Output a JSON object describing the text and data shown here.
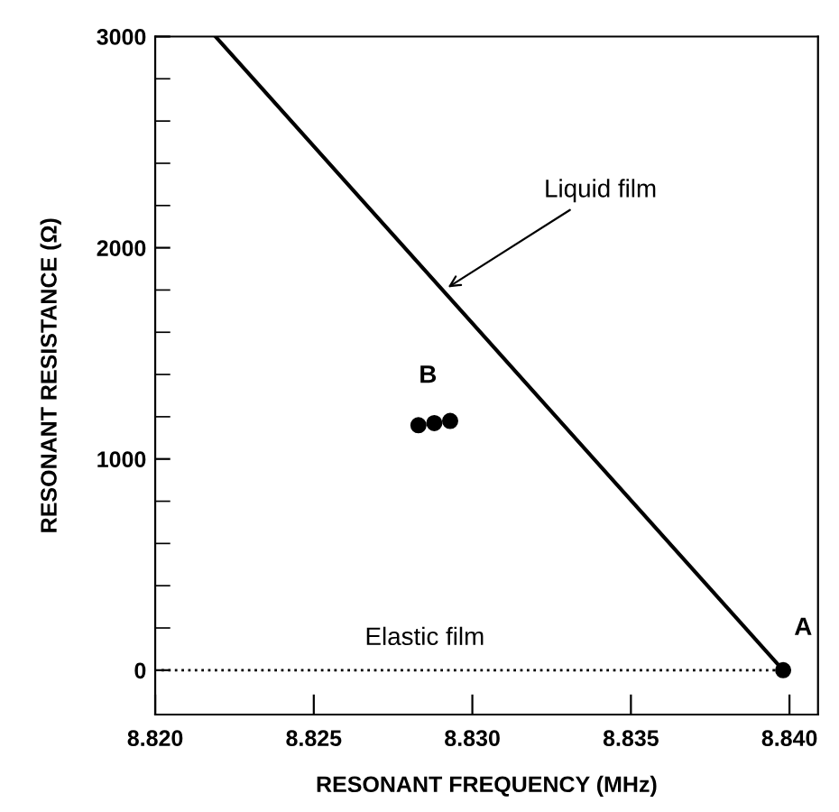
{
  "chart_data": {
    "type": "line",
    "xlabel": "RESONANT FREQUENCY (MHz)",
    "ylabel": "RESONANT RESISTANCE (Ω)",
    "xlim": [
      8.82,
      8.8409
    ],
    "ylim": [
      -210,
      3000
    ],
    "xticks": [
      {
        "value": 8.82,
        "label": "8.820"
      },
      {
        "value": 8.825,
        "label": "8.825"
      },
      {
        "value": 8.83,
        "label": "8.830"
      },
      {
        "value": 8.835,
        "label": "8.835"
      },
      {
        "value": 8.84,
        "label": "8.840"
      }
    ],
    "yticks": [
      0,
      1000,
      2000,
      3000
    ],
    "grid": false,
    "legend": false,
    "series": [
      {
        "color": "#000000",
        "line_style": "solid",
        "marker": "none",
        "x": [
          8.8219,
          8.8398
        ],
        "values": [
          3000,
          0
        ]
      },
      {
        "color": "#000000",
        "line_style": "dotted",
        "marker": "none",
        "x": [
          8.8202,
          8.8398
        ],
        "values": [
          0,
          0
        ]
      },
      {
        "type": "scatter",
        "color": "#000000",
        "marker": "circle",
        "x": [
          8.8398
        ],
        "values": [
          0
        ]
      },
      {
        "type": "scatter",
        "color": "#000000",
        "marker": "circle",
        "x": [
          8.8283,
          8.8288,
          8.8293
        ],
        "values": [
          1160,
          1170,
          1180
        ]
      }
    ],
    "annotations": [
      {
        "text": "Liquid film",
        "x": 8.8291,
        "y": 1800
      },
      {
        "text": "Elastic film",
        "x": 8.8285,
        "y": 0
      },
      {
        "text": "A",
        "x": 8.8398,
        "y": 0
      },
      {
        "text": "B",
        "x": 8.8286,
        "y": 1170
      }
    ]
  }
}
